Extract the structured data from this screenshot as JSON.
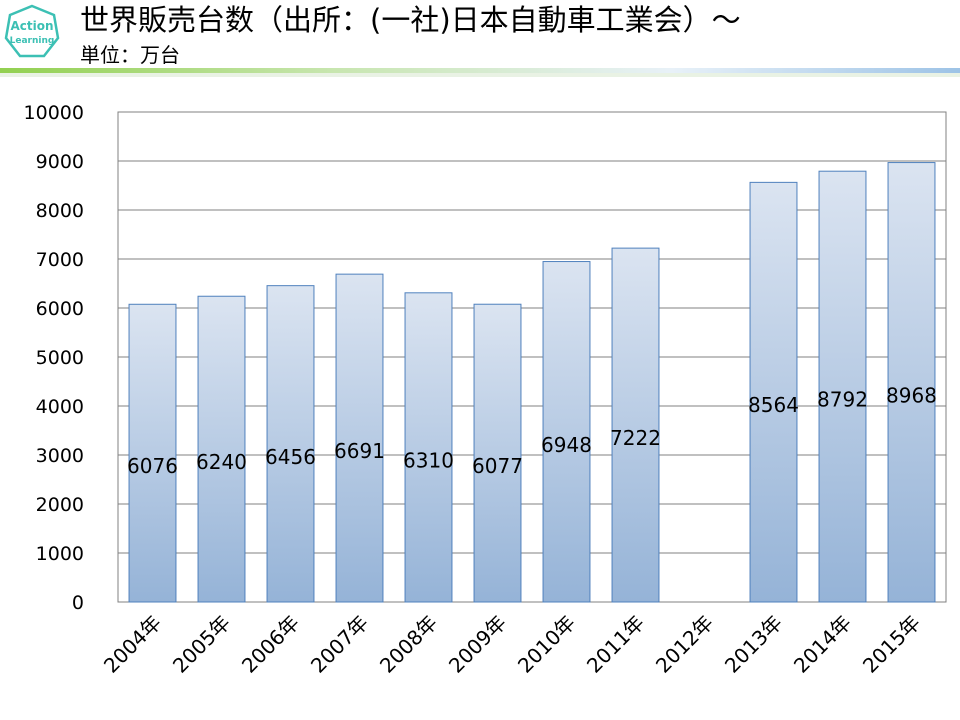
{
  "header": {
    "logo_text_line1": "Action",
    "logo_text_line2": "Learning",
    "title": "世界販売台数（出所：(一社)日本自動車工業会）～",
    "subtitle": "単位：万台"
  },
  "colors": {
    "bar_top": "#dbe4f1",
    "bar_bottom": "#95b3d7",
    "bar_border": "#4f81bd",
    "grid": "#808080",
    "logo": "#3cc0b4",
    "rule_green": "#92d050"
  },
  "chart_data": {
    "type": "bar",
    "title": "",
    "xlabel": "",
    "ylabel": "",
    "categories": [
      "2004年",
      "2005年",
      "2006年",
      "2007年",
      "2008年",
      "2009年",
      "2010年",
      "2011年",
      "2012年",
      "2013年",
      "2014年",
      "2015年"
    ],
    "values": [
      6076,
      6240,
      6456,
      6691,
      6310,
      6077,
      6948,
      7222,
      null,
      8564,
      8792,
      8968
    ],
    "ylim": [
      0,
      10000
    ],
    "yticks": [
      0,
      1000,
      2000,
      3000,
      4000,
      5000,
      6000,
      7000,
      8000,
      9000,
      10000
    ],
    "grid": true,
    "legend": "none"
  }
}
